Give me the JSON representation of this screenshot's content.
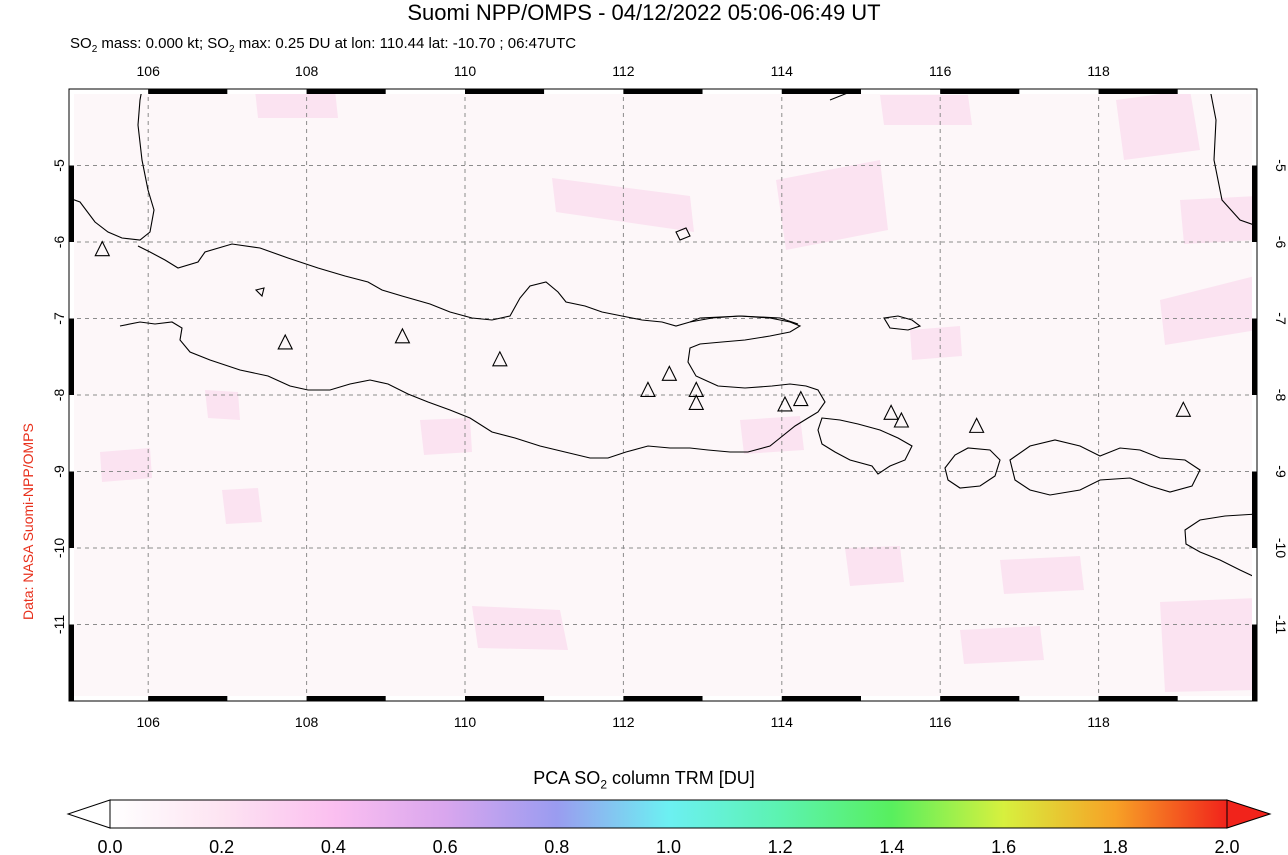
{
  "header": {
    "title": "Suomi NPP/OMPS - 04/12/2022 05:06-06:49 UT",
    "subtitle_parts": {
      "pre": "SO",
      "sub": "2",
      "mid": " mass: 0.000 kt; SO",
      "sub2": "2",
      "post": " max: 0.25 DU at lon: 110.44 lat: -10.70 ; 06:47UTC"
    }
  },
  "credit": "Data: NASA Suomi-NPP/OMPS",
  "map": {
    "lon_range": [
      105.0,
      120.0
    ],
    "lat_range": [
      -12.0,
      -4.0
    ],
    "lon_ticks": [
      "106",
      "108",
      "110",
      "112",
      "114",
      "116",
      "118"
    ],
    "lat_ticks": [
      "-5",
      "-6",
      "-7",
      "-8",
      "-9",
      "-10",
      "-11"
    ],
    "grid": true,
    "volcanoes": [
      {
        "lon": 105.42,
        "lat": -6.1
      },
      {
        "lon": 107.73,
        "lat": -7.32
      },
      {
        "lon": 109.21,
        "lat": -7.24
      },
      {
        "lon": 110.44,
        "lat": -7.54
      },
      {
        "lon": 112.31,
        "lat": -7.94
      },
      {
        "lon": 112.58,
        "lat": -7.73
      },
      {
        "lon": 112.92,
        "lat": -7.94
      },
      {
        "lon": 112.92,
        "lat": -8.11
      },
      {
        "lon": 114.04,
        "lat": -8.13
      },
      {
        "lon": 114.24,
        "lat": -8.06
      },
      {
        "lon": 115.38,
        "lat": -8.24
      },
      {
        "lon": 115.51,
        "lat": -8.34
      },
      {
        "lon": 116.46,
        "lat": -8.41
      },
      {
        "lon": 119.07,
        "lat": -8.2
      }
    ]
  },
  "colorbar": {
    "title_pre": "PCA SO",
    "title_sub": "2",
    "title_post": " column TRM [DU]",
    "ticks": [
      "0.0",
      "0.2",
      "0.4",
      "0.6",
      "0.8",
      "1.0",
      "1.2",
      "1.4",
      "1.6",
      "1.8",
      "2.0"
    ],
    "colors": [
      "#ffffff",
      "#fde4f2",
      "#fbbff0",
      "#d9a6ee",
      "#9a9cf0",
      "#6cf0f2",
      "#5cf3b0",
      "#58ef5e",
      "#d7f03e",
      "#f7a126",
      "#f1231b"
    ]
  }
}
